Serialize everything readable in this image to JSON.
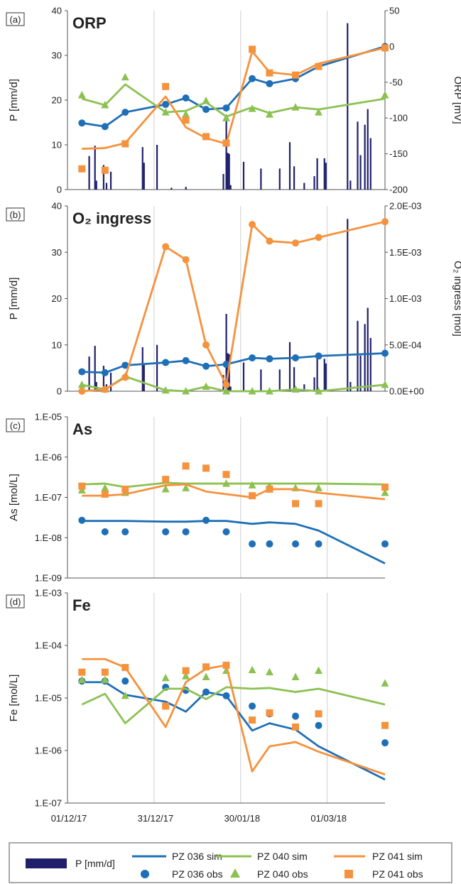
{
  "figure": {
    "x_dates": [
      "2017-12-01",
      "2017-12-31",
      "2018-01-30",
      "2018-03-01"
    ],
    "x_tick_labels": [
      "01/12/17",
      "31/12/17",
      "30/01/18",
      "01/03/18"
    ],
    "x_range_day": [
      0,
      110
    ],
    "legend": {
      "p": "P [mm/d]",
      "pz036_sim": "PZ 036 sim",
      "pz040_sim": "PZ 040 sim",
      "pz041_sim": "PZ 041 sim",
      "pz036_obs": "PZ 036 obs",
      "pz040_obs": "PZ 040 obs",
      "pz041_obs": "PZ 041 obs"
    },
    "colors": {
      "p": "#1f1f6b",
      "pz036": "#1f6fb6",
      "pz040": "#8cc152",
      "pz041": "#f5923e",
      "grid": "#cfcfcf",
      "axis": "#555555"
    }
  },
  "chart_data": [
    {
      "type": "line",
      "panel_label": "(a)",
      "title": "ORP",
      "ylabel_left": "P [mm/d]",
      "ylabel_right": "ORP [mV]",
      "ylim_left": [
        0,
        40
      ],
      "yticks_left": [
        "0",
        "10",
        "20",
        "30",
        "40"
      ],
      "ylim_right": [
        -200,
        50
      ],
      "yticks_right": [
        "-200",
        "-150",
        "-100",
        "-50",
        "0",
        "50"
      ],
      "precip": [
        {
          "x": 7.5,
          "value": 7.5
        },
        {
          "x": 9.5,
          "value": 9.8
        },
        {
          "x": 10,
          "value": 2.0
        },
        {
          "x": 12.5,
          "value": 5.5
        },
        {
          "x": 13.5,
          "value": 1.5
        },
        {
          "x": 15,
          "value": 4.0
        },
        {
          "x": 26,
          "value": 9.5
        },
        {
          "x": 26.5,
          "value": 6.0
        },
        {
          "x": 31,
          "value": 10.0
        },
        {
          "x": 36,
          "value": 0.4
        },
        {
          "x": 41,
          "value": 0.6
        },
        {
          "x": 54,
          "value": 3.5
        },
        {
          "x": 55,
          "value": 16.7
        },
        {
          "x": 55.5,
          "value": 8.2
        },
        {
          "x": 56,
          "value": 8.0
        },
        {
          "x": 56.5,
          "value": 1.0
        },
        {
          "x": 61,
          "value": 6.2
        },
        {
          "x": 67,
          "value": 4.7
        },
        {
          "x": 73.5,
          "value": 4.7
        },
        {
          "x": 77,
          "value": 10.6
        },
        {
          "x": 78.5,
          "value": 5.2
        },
        {
          "x": 82,
          "value": 1.5
        },
        {
          "x": 85.5,
          "value": 3.0
        },
        {
          "x": 86.5,
          "value": 7.0
        },
        {
          "x": 89,
          "value": 7.0
        },
        {
          "x": 89.5,
          "value": 6.0
        },
        {
          "x": 97,
          "value": 37.2
        },
        {
          "x": 98,
          "value": 2.0
        },
        {
          "x": 100.5,
          "value": 15.2
        },
        {
          "x": 101.5,
          "value": 7.7
        },
        {
          "x": 103,
          "value": 14.5
        },
        {
          "x": 104,
          "value": 18.0
        },
        {
          "x": 105,
          "value": 11.5
        }
      ],
      "series": [
        {
          "name": "PZ 036 sim",
          "axis": "right",
          "kind": "line",
          "color": "#1f6fb6",
          "x": [
            5,
            13,
            20,
            34,
            41,
            48,
            55,
            64,
            70,
            79,
            87,
            110
          ],
          "y": [
            -107,
            -112,
            -92,
            -81,
            -72,
            -88,
            -86,
            -45,
            -52,
            -45,
            -28,
            0
          ]
        },
        {
          "name": "PZ 036 obs",
          "axis": "right",
          "kind": "circle",
          "color": "#1f6fb6",
          "x": [
            5,
            13,
            20,
            34,
            41,
            48,
            55,
            64,
            70,
            79,
            87,
            110
          ],
          "y": [
            -107,
            -112,
            -92,
            -81,
            -72,
            -88,
            -86,
            -45,
            -52,
            -45,
            -28,
            0
          ]
        },
        {
          "name": "PZ 040 sim",
          "axis": "right",
          "kind": "line",
          "color": "#8cc152",
          "x": [
            5,
            13,
            20,
            34,
            41,
            48,
            55,
            64,
            70,
            79,
            87,
            110
          ],
          "y": [
            -73,
            -82,
            -53,
            -92,
            -90,
            -78,
            -98,
            -85,
            -93,
            -85,
            -88,
            -73
          ]
        },
        {
          "name": "PZ 040 obs",
          "axis": "right",
          "kind": "triangle",
          "color": "#8cc152",
          "x": [
            5,
            13,
            20,
            34,
            41,
            48,
            55,
            64,
            70,
            79,
            87,
            110
          ],
          "y": [
            -68,
            -82,
            -43,
            -92,
            -95,
            -76,
            -100,
            -87,
            -95,
            -85,
            -92,
            -68
          ]
        },
        {
          "name": "PZ 041 sim",
          "axis": "right",
          "kind": "line",
          "color": "#f5923e",
          "x": [
            5,
            13,
            20,
            34,
            41,
            48,
            55,
            64,
            70,
            79,
            87,
            110
          ],
          "y": [
            -143,
            -142,
            -135,
            -70,
            -113,
            -128,
            -136,
            -7,
            -36,
            -40,
            -24,
            -2
          ]
        },
        {
          "name": "PZ 041 obs",
          "axis": "square",
          "kind": "square",
          "color": "#f5923e",
          "x": [
            5,
            13,
            20,
            34,
            41,
            48,
            55,
            64,
            70,
            79,
            87,
            110
          ],
          "y": [
            -171,
            -173,
            -136,
            -56,
            -103,
            -126,
            -135,
            -4,
            -37,
            -40,
            -28,
            -2
          ]
        }
      ]
    },
    {
      "type": "line",
      "panel_label": "(b)",
      "title": "O₂ ingress",
      "ylabel_left": "P [mm/d]",
      "ylabel_right": "O₂ ingress [mol]",
      "ylim_left": [
        0,
        40
      ],
      "yticks_left": [
        "0",
        "10",
        "20",
        "30",
        "40"
      ],
      "ylim_right": [
        0,
        0.002
      ],
      "yticks_right": [
        "0.0E+00",
        "5.0E-04",
        "1.0E-03",
        "1.5E-03",
        "2.0E-03"
      ],
      "series": [
        {
          "name": "PZ 036 sim",
          "axis": "right",
          "kind": "line",
          "color": "#1f6fb6",
          "x": [
            5,
            13,
            20,
            34,
            41,
            48,
            55,
            64,
            70,
            79,
            87,
            110
          ],
          "y": [
            0.00021,
            0.0002,
            0.00028,
            0.00031,
            0.00033,
            0.00027,
            0.00029,
            0.00036,
            0.00035,
            0.00036,
            0.00038,
            0.00041
          ]
        },
        {
          "name": "PZ 036 obs",
          "axis": "right",
          "kind": "circle",
          "color": "#1f6fb6",
          "x": [
            5,
            13,
            20,
            34,
            41,
            48,
            55,
            64,
            70,
            79,
            87,
            110
          ],
          "y": [
            0.00021,
            0.0002,
            0.00028,
            0.00031,
            0.00033,
            0.00027,
            0.00029,
            0.00036,
            0.00035,
            0.00036,
            0.00038,
            0.00041
          ]
        },
        {
          "name": "PZ 040 sim",
          "axis": "right",
          "kind": "line",
          "color": "#8cc152",
          "x": [
            5,
            13,
            20,
            34,
            41,
            48,
            55,
            64,
            70,
            79,
            87,
            110
          ],
          "y": [
            7e-05,
            2e-05,
            0.00016,
            1e-05,
            0.0,
            5e-05,
            0.0,
            0.0,
            0.0,
            2e-05,
            0.0,
            7e-05
          ]
        },
        {
          "name": "PZ 040 obs",
          "axis": "right",
          "kind": "triangle",
          "color": "#8cc152",
          "x": [
            5,
            13,
            20,
            34,
            41,
            48,
            55,
            64,
            70,
            79,
            87,
            110
          ],
          "y": [
            7e-05,
            2e-05,
            0.00016,
            1e-05,
            0.0,
            5e-05,
            0.0,
            0.0,
            0.0,
            2e-05,
            0.0,
            7e-05
          ]
        },
        {
          "name": "PZ 041 sim",
          "axis": "right",
          "kind": "line",
          "color": "#f5923e",
          "x": [
            5,
            13,
            20,
            34,
            41,
            48,
            55,
            64,
            70,
            79,
            87,
            110
          ],
          "y": [
            0.0,
            2e-05,
            0.00015,
            0.00156,
            0.00142,
            0.0005,
            7e-05,
            0.0018,
            0.00162,
            0.0016,
            0.00166,
            0.00183
          ]
        },
        {
          "name": "PZ 041 obs",
          "axis": "right",
          "kind": "circle",
          "color": "#f5923e",
          "x": [
            5,
            13,
            20,
            34,
            41,
            48,
            55,
            64,
            70,
            79,
            87,
            110
          ],
          "y": [
            0.0,
            2e-05,
            0.00015,
            0.00156,
            0.00142,
            0.0005,
            7e-05,
            0.0018,
            0.00162,
            0.0016,
            0.00166,
            0.00183
          ]
        }
      ]
    },
    {
      "type": "line",
      "panel_label": "(c)",
      "title": "As",
      "ylabel_left": "As [mol/L]",
      "yscale": "log",
      "ylim_left": [
        1e-09,
        1e-05
      ],
      "yticks_left": [
        "1.E-09",
        "1.E-08",
        "1.E-07",
        "1.E-06",
        "1.E-05"
      ],
      "series": [
        {
          "name": "PZ 036 sim",
          "kind": "line",
          "color": "#1f6fb6",
          "x": [
            5,
            20,
            34,
            41,
            48,
            55,
            64,
            70,
            79,
            87,
            110
          ],
          "y": [
            2.6e-08,
            2.6e-08,
            2.5e-08,
            2.5e-08,
            2.6e-08,
            2.6e-08,
            2.2e-08,
            2.4e-08,
            2.2e-08,
            1.5e-08,
            2.3e-09
          ]
        },
        {
          "name": "PZ 036 obs",
          "kind": "circle",
          "color": "#1f6fb6",
          "x": [
            5,
            13,
            20,
            34,
            41,
            48,
            55,
            64,
            70,
            79,
            87,
            110
          ],
          "y": [
            2.7e-08,
            1.4e-08,
            1.4e-08,
            1.4e-08,
            1.4e-08,
            2.7e-08,
            1.4e-08,
            7e-09,
            7e-09,
            7e-09,
            7e-09,
            7e-09
          ]
        },
        {
          "name": "PZ 040 sim",
          "kind": "line",
          "color": "#8cc152",
          "x": [
            5,
            13,
            20,
            34,
            41,
            48,
            55,
            64,
            70,
            79,
            87,
            110
          ],
          "y": [
            2.1e-07,
            2.2e-07,
            1.8e-07,
            2.3e-07,
            2.2e-07,
            2.2e-07,
            2.2e-07,
            2.2e-07,
            2.2e-07,
            2.2e-07,
            2.2e-07,
            2.1e-07
          ]
        },
        {
          "name": "PZ 040 obs",
          "kind": "triangle",
          "color": "#8cc152",
          "x": [
            5,
            13,
            20,
            34,
            41,
            55,
            64,
            70,
            79,
            87,
            110
          ],
          "y": [
            1.5e-07,
            1.7e-07,
            1.3e-07,
            1.6e-07,
            1.7e-07,
            2.2e-07,
            2e-07,
            1.9e-07,
            1.7e-07,
            1.7e-07,
            1.3e-07
          ]
        },
        {
          "name": "PZ 041 sim",
          "kind": "line",
          "color": "#f5923e",
          "x": [
            5,
            13,
            20,
            34,
            41,
            48,
            55,
            64,
            70,
            79,
            87,
            110
          ],
          "y": [
            1.1e-07,
            1.1e-07,
            1.2e-07,
            2e-07,
            2.1e-07,
            1.4e-07,
            1.2e-07,
            1e-07,
            1.6e-07,
            1.6e-07,
            1.3e-07,
            9e-08
          ]
        },
        {
          "name": "PZ 041 obs",
          "kind": "square",
          "color": "#f5923e",
          "x": [
            5,
            13,
            20,
            34,
            41,
            48,
            55,
            64,
            70,
            79,
            87,
            110
          ],
          "y": [
            1.9e-07,
            1.2e-07,
            1.6e-07,
            2.8e-07,
            6e-07,
            5.3e-07,
            3.7e-07,
            1.1e-07,
            1.6e-07,
            7e-08,
            7e-08,
            1.8e-07
          ]
        }
      ]
    },
    {
      "type": "line",
      "panel_label": "(d)",
      "title": "Fe",
      "ylabel_left": "Fe [mol/L]",
      "yscale": "log",
      "ylim_left": [
        1e-07,
        0.001
      ],
      "yticks_left": [
        "1.E-07",
        "1.E-06",
        "1.E-05",
        "1.E-04",
        "1.E-03"
      ],
      "series": [
        {
          "name": "PZ 036 sim",
          "kind": "line",
          "color": "#1f6fb6",
          "x": [
            5,
            13,
            20,
            34,
            41,
            48,
            55,
            64,
            70,
            79,
            87,
            110
          ],
          "y": [
            2e-05,
            2e-05,
            1.15e-05,
            8.5e-06,
            5.5e-06,
            1.3e-05,
            1.1e-05,
            2.4e-06,
            3.3e-06,
            2.5e-06,
            1.2e-06,
            2.8e-07
          ]
        },
        {
          "name": "PZ 036 obs",
          "kind": "circle",
          "color": "#1f6fb6",
          "x": [
            5,
            13,
            20,
            34,
            41,
            48,
            55,
            64,
            70,
            79,
            87,
            110
          ],
          "y": [
            2.1e-05,
            2.1e-05,
            2.1e-05,
            1.6e-05,
            1.4e-05,
            1.3e-05,
            1.1e-05,
            7e-06,
            5e-06,
            4.5e-06,
            3e-06,
            1.4e-06
          ]
        },
        {
          "name": "PZ 040 sim",
          "kind": "line",
          "color": "#8cc152",
          "x": [
            5,
            13,
            20,
            34,
            41,
            48,
            55,
            64,
            70,
            79,
            87,
            110
          ],
          "y": [
            7.5e-06,
            1.2e-05,
            3.3e-06,
            1.5e-05,
            1.5e-05,
            9.5e-06,
            1.6e-05,
            1.5e-05,
            1.55e-05,
            1.3e-05,
            1.5e-05,
            7.5e-06
          ]
        },
        {
          "name": "PZ 040 obs",
          "kind": "triangle",
          "color": "#8cc152",
          "x": [
            5,
            13,
            20,
            34,
            41,
            48,
            55,
            64,
            70,
            79,
            87,
            110
          ],
          "y": [
            2.2e-05,
            2.2e-05,
            1.1e-05,
            2.4e-05,
            2.6e-05,
            2.5e-05,
            3.3e-05,
            3.4e-05,
            3.1e-05,
            2.5e-05,
            3.3e-05,
            1.9e-05
          ]
        },
        {
          "name": "PZ 041 sim",
          "kind": "line",
          "color": "#f5923e",
          "x": [
            5,
            13,
            20,
            34,
            41,
            48,
            55,
            64,
            70,
            79,
            87,
            110
          ],
          "y": [
            5.5e-05,
            5.5e-05,
            3.8e-05,
            2.8e-06,
            2e-05,
            3.6e-05,
            4.2e-05,
            4e-07,
            1.2e-06,
            1.45e-06,
            9.5e-07,
            3.5e-07
          ]
        },
        {
          "name": "PZ 041 obs",
          "kind": "square",
          "color": "#f5923e",
          "x": [
            5,
            13,
            20,
            34,
            41,
            48,
            55,
            64,
            70,
            79,
            87,
            110
          ],
          "y": [
            3.1e-05,
            3.1e-05,
            3.8e-05,
            7e-06,
            3.3e-05,
            3.9e-05,
            4.2e-05,
            3.8e-06,
            5.2e-06,
            2.8e-06,
            5e-06,
            3e-06
          ]
        }
      ]
    }
  ]
}
